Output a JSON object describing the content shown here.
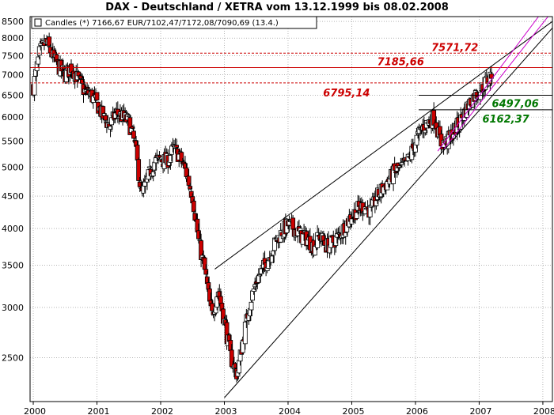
{
  "chart_data": {
    "type": "candlestick",
    "title": "DAX - Deutschland / XETRA vom 13.12.1999 bis 08.02.2008",
    "legend": {
      "label": "Candles (*) 7166,67 EUR/7102,47/7172,08/7090,69 (13.4.)",
      "placement": "top-left"
    },
    "y_scale": "log",
    "ylim": [
      2130,
      8650
    ],
    "xlim": [
      1999.95,
      2008.15
    ],
    "yticks": [
      2500,
      3000,
      3500,
      4000,
      4500,
      5000,
      5500,
      6000,
      6500,
      7000,
      7500,
      8000,
      8500
    ],
    "xticks": [
      {
        "label": "2000",
        "x": 2000.0
      },
      {
        "label": "2001",
        "x": 2001.0
      },
      {
        "label": "2002",
        "x": 2002.0
      },
      {
        "label": "2003",
        "x": 2003.0
      },
      {
        "label": "2004",
        "x": 2004.0
      },
      {
        "label": "2005",
        "x": 2005.0
      },
      {
        "label": "2006",
        "x": 2006.0
      },
      {
        "label": "2007",
        "x": 2007.0
      },
      {
        "label": "2008",
        "x": 2008.0
      }
    ],
    "grid": true,
    "close_path": [
      [
        2000.0,
        6700
      ],
      [
        2000.1,
        7600
      ],
      [
        2000.2,
        7900
      ],
      [
        2000.3,
        7500
      ],
      [
        2000.4,
        7200
      ],
      [
        2000.5,
        7000
      ],
      [
        2000.6,
        7200
      ],
      [
        2000.7,
        6900
      ],
      [
        2000.8,
        6600
      ],
      [
        2000.9,
        6500
      ],
      [
        2001.0,
        6300
      ],
      [
        2001.1,
        6000
      ],
      [
        2001.2,
        5800
      ],
      [
        2001.3,
        6100
      ],
      [
        2001.4,
        6000
      ],
      [
        2001.5,
        5900
      ],
      [
        2001.6,
        5400
      ],
      [
        2001.7,
        4500
      ],
      [
        2001.8,
        4800
      ],
      [
        2001.9,
        5100
      ],
      [
        2002.0,
        5150
      ],
      [
        2002.1,
        5100
      ],
      [
        2002.2,
        5350
      ],
      [
        2002.3,
        5200
      ],
      [
        2002.4,
        4900
      ],
      [
        2002.5,
        4500
      ],
      [
        2002.6,
        3800
      ],
      [
        2002.7,
        3400
      ],
      [
        2002.8,
        2900
      ],
      [
        2002.9,
        3200
      ],
      [
        2003.0,
        2850
      ],
      [
        2003.1,
        2500
      ],
      [
        2003.2,
        2350
      ],
      [
        2003.3,
        2700
      ],
      [
        2003.4,
        3050
      ],
      [
        2003.5,
        3300
      ],
      [
        2003.6,
        3450
      ],
      [
        2003.7,
        3600
      ],
      [
        2003.8,
        3800
      ],
      [
        2003.9,
        3950
      ],
      [
        2004.0,
        4050
      ],
      [
        2004.1,
        4000
      ],
      [
        2004.2,
        3900
      ],
      [
        2004.3,
        3850
      ],
      [
        2004.4,
        3750
      ],
      [
        2004.5,
        3900
      ],
      [
        2004.6,
        3750
      ],
      [
        2004.7,
        3800
      ],
      [
        2004.8,
        3900
      ],
      [
        2004.9,
        4050
      ],
      [
        2005.0,
        4200
      ],
      [
        2005.1,
        4300
      ],
      [
        2005.2,
        4350
      ],
      [
        2005.3,
        4250
      ],
      [
        2005.4,
        4500
      ],
      [
        2005.5,
        4650
      ],
      [
        2005.6,
        4800
      ],
      [
        2005.7,
        4950
      ],
      [
        2005.8,
        5000
      ],
      [
        2005.9,
        5150
      ],
      [
        2006.0,
        5500
      ],
      [
        2006.1,
        5750
      ],
      [
        2006.2,
        5900
      ],
      [
        2006.3,
        6000
      ],
      [
        2006.4,
        5450
      ],
      [
        2006.5,
        5500
      ],
      [
        2006.6,
        5700
      ],
      [
        2006.7,
        5900
      ],
      [
        2006.8,
        6200
      ],
      [
        2006.9,
        6450
      ],
      [
        2007.0,
        6600
      ],
      [
        2007.1,
        6800
      ],
      [
        2007.15,
        6900
      ],
      [
        2007.2,
        7050
      ]
    ],
    "horizontal_levels": [
      {
        "value": 7571.72,
        "label": "7571,72",
        "style": "dashed",
        "color": "#cc0000",
        "label_x": 2006.25
      },
      {
        "value": 7185.66,
        "label": "7185,66",
        "style": "solid",
        "color": "#cc0000",
        "label_x": 2005.4
      },
      {
        "value": 6795.14,
        "label": "6795,14",
        "style": "dashed",
        "color": "#cc0000",
        "label_x": 2004.55
      },
      {
        "value": 6497.06,
        "label": "6497,06",
        "style": "solid",
        "color": "#000000",
        "label_x": 2007.2
      },
      {
        "value": 6162.37,
        "label": "6162,37",
        "style": "solid",
        "color": "#000000",
        "label_x": 2007.05
      }
    ],
    "trendlines": [
      {
        "from": [
          2002.85,
          3450
        ],
        "to": [
          2008.15,
          8500
        ],
        "color": "#000000"
      },
      {
        "from": [
          2003.0,
          2160
        ],
        "to": [
          2008.15,
          8300
        ],
        "color": "#000000"
      },
      {
        "from": [
          2006.35,
          5300
        ],
        "to": [
          2007.95,
          8700
        ],
        "color": "#cc00cc"
      },
      {
        "from": [
          2006.45,
          5350
        ],
        "to": [
          2008.1,
          8700
        ],
        "color": "#cc00cc"
      }
    ],
    "colors": {
      "bull": "#ffffff",
      "bear": "#cc0000",
      "wick": "#000000",
      "grid": "#888888",
      "level_label_red": "#cc0000",
      "level_label_green": "#007700"
    }
  }
}
